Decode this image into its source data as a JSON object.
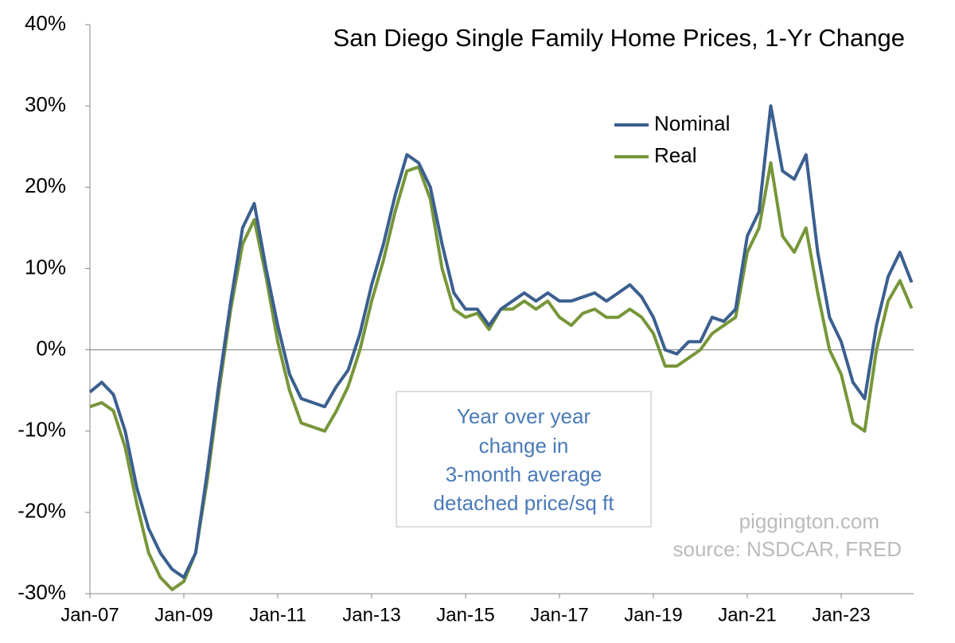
{
  "chart_data": {
    "type": "line",
    "title": "San Diego Single Family Home Prices, 1-Yr Change",
    "categories": [
      "Jan-07",
      null,
      null,
      null,
      null,
      null,
      null,
      null,
      "Jan-09",
      null,
      null,
      null,
      null,
      null,
      null,
      null,
      "Jan-11",
      null,
      null,
      null,
      null,
      null,
      null,
      null,
      "Jan-13",
      null,
      null,
      null,
      null,
      null,
      null,
      null,
      "Jan-15",
      null,
      null,
      null,
      null,
      null,
      null,
      null,
      "Jan-17",
      null,
      null,
      null,
      null,
      null,
      null,
      null,
      "Jan-19",
      null,
      null,
      null,
      null,
      null,
      null,
      null,
      "Jan-21",
      null,
      null,
      null,
      null,
      null,
      null,
      null,
      "Jan-23",
      null,
      null,
      null,
      null,
      null,
      null
    ],
    "series": [
      {
        "name": "Nominal",
        "color": "#3b5f8f",
        "values": [
          -5.2,
          -4,
          -5.5,
          -10,
          -17,
          -22,
          -25,
          -27,
          -28,
          -25,
          -15,
          -4,
          6,
          15,
          18,
          10,
          3,
          -3,
          -6,
          -6.5,
          -7,
          -4.5,
          -2.5,
          2,
          8,
          13,
          19,
          24,
          23,
          20,
          13,
          7,
          5,
          5,
          3,
          5,
          6,
          7,
          6,
          7,
          6,
          6,
          6.5,
          7,
          6,
          7,
          8,
          6.5,
          4,
          0,
          -0.5,
          1,
          1,
          4,
          3.5,
          5,
          14,
          17,
          30,
          22,
          21,
          24,
          12,
          4,
          1,
          -4,
          -6,
          3,
          9,
          12,
          8.3
        ]
      },
      {
        "name": "Real",
        "color": "#77963a",
        "values": [
          -7,
          -6.5,
          -7.5,
          -12,
          -19,
          -25,
          -28,
          -29.5,
          -28.5,
          -25,
          -16,
          -5,
          5,
          13,
          16,
          9,
          1,
          -5,
          -9,
          -9.5,
          -10,
          -7.5,
          -4.5,
          0,
          6,
          11,
          17,
          22,
          22.5,
          18.5,
          10,
          5,
          4,
          4.5,
          2.5,
          5,
          5,
          6,
          5,
          6,
          4,
          3,
          4.5,
          5,
          4,
          4,
          5,
          4,
          2,
          -2,
          -2,
          -1,
          0,
          2,
          3,
          4,
          12,
          15,
          23,
          14,
          12,
          15,
          7,
          0,
          -3,
          -9,
          -10,
          0,
          6,
          8.5,
          5.1
        ]
      }
    ],
    "ylim": [
      -30,
      40
    ],
    "yticks": [
      {
        "value": -30,
        "label": "-30%"
      },
      {
        "value": -20,
        "label": "-20%"
      },
      {
        "value": -10,
        "label": "-10%"
      },
      {
        "value": 0,
        "label": "0%"
      },
      {
        "value": 10,
        "label": "10%"
      },
      {
        "value": 20,
        "label": "20%"
      },
      {
        "value": 30,
        "label": "30%"
      },
      {
        "value": 40,
        "label": "40%"
      }
    ],
    "annotation": [
      "Year over year",
      "change in",
      "3-month average",
      "detached price/sq ft"
    ],
    "watermark": [
      "piggington.com",
      "source: NSDCAR, FRED"
    ]
  }
}
